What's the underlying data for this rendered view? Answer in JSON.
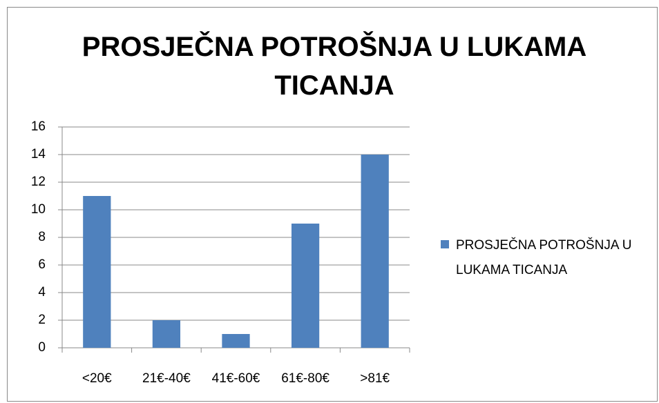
{
  "chart_data": {
    "type": "bar",
    "title": "PROSJEČNA POTROŠNJA U LUKAMA TICANJA",
    "categories": [
      "<20€",
      "21€-40€",
      "41€-60€",
      "61€-80€",
      ">81€"
    ],
    "series": [
      {
        "name": "PROSJEČNA POTROŠNJA U LUKAMA TICANJA",
        "color": "#4f81bd",
        "values": [
          11,
          2,
          1,
          9,
          14
        ]
      }
    ],
    "ylim": [
      0,
      16
    ],
    "yticks": [
      0,
      2,
      4,
      6,
      8,
      10,
      12,
      14,
      16
    ],
    "grid": true,
    "legend": "right"
  }
}
